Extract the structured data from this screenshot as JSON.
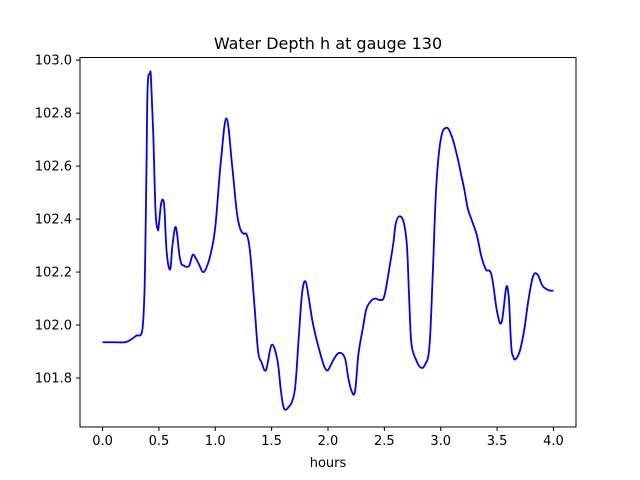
{
  "chart_data": {
    "type": "line",
    "title": "Water Depth h at gauge 130",
    "xlabel": "hours",
    "ylabel": "",
    "xlim": [
      -0.2,
      4.2
    ],
    "ylim": [
      101.615,
      103.01
    ],
    "xticks": [
      0.0,
      0.5,
      1.0,
      1.5,
      2.0,
      2.5,
      3.0,
      3.5,
      4.0
    ],
    "xtick_labels": [
      "0.0",
      "0.5",
      "1.0",
      "1.5",
      "2.0",
      "2.5",
      "3.0",
      "3.5",
      "4.0"
    ],
    "yticks": [
      101.8,
      102.0,
      102.2,
      102.4,
      102.6,
      102.8,
      103.0
    ],
    "ytick_labels": [
      "101.8",
      "102.0",
      "102.2",
      "102.4",
      "102.6",
      "102.8",
      "103.0"
    ],
    "grid": false,
    "series": [
      {
        "name": "",
        "color": "#0000ff",
        "x": [
          0.0,
          0.1,
          0.2,
          0.25,
          0.3,
          0.35,
          0.37,
          0.38,
          0.39,
          0.4,
          0.42,
          0.43,
          0.45,
          0.47,
          0.49,
          0.5,
          0.52,
          0.54,
          0.55,
          0.57,
          0.6,
          0.62,
          0.65,
          0.68,
          0.7,
          0.72,
          0.74,
          0.77,
          0.8,
          0.83,
          0.86,
          0.89,
          0.92,
          0.96,
          1.0,
          1.05,
          1.1,
          1.15,
          1.19,
          1.22,
          1.25,
          1.28,
          1.31,
          1.35,
          1.38,
          1.41,
          1.45,
          1.5,
          1.55,
          1.58,
          1.6,
          1.62,
          1.65,
          1.68,
          1.71,
          1.74,
          1.77,
          1.8,
          1.83,
          1.86,
          1.89,
          1.92,
          1.95,
          1.97,
          2.0,
          2.05,
          2.1,
          2.15,
          2.18,
          2.21,
          2.24,
          2.27,
          2.31,
          2.34,
          2.38,
          2.42,
          2.46,
          2.5,
          2.55,
          2.58,
          2.6,
          2.63,
          2.67,
          2.7,
          2.72,
          2.74,
          2.78,
          2.82,
          2.86,
          2.9,
          2.93,
          2.96,
          3.0,
          3.05,
          3.1,
          3.15,
          3.18,
          3.21,
          3.24,
          3.28,
          3.32,
          3.36,
          3.4,
          3.45,
          3.5,
          3.54,
          3.58,
          3.6,
          3.61,
          3.62,
          3.63,
          3.64,
          3.66,
          3.7,
          3.74,
          3.78,
          3.82,
          3.86,
          3.9,
          3.94,
          3.97,
          4.0
        ],
        "y": [
          101.935,
          101.935,
          101.935,
          101.945,
          101.96,
          101.975,
          102.1,
          102.3,
          102.6,
          102.9,
          102.95,
          102.93,
          102.72,
          102.43,
          102.36,
          102.38,
          102.46,
          102.47,
          102.43,
          102.27,
          102.21,
          102.3,
          102.37,
          102.27,
          102.23,
          102.225,
          102.22,
          102.225,
          102.265,
          102.25,
          102.225,
          102.2,
          102.215,
          102.27,
          102.37,
          102.62,
          102.78,
          102.6,
          102.43,
          102.365,
          102.345,
          102.34,
          102.27,
          102.06,
          101.9,
          101.86,
          101.83,
          101.925,
          101.87,
          101.76,
          101.7,
          101.68,
          101.69,
          101.71,
          101.77,
          101.95,
          102.12,
          102.165,
          102.1,
          102.02,
          101.96,
          101.91,
          101.865,
          101.84,
          101.83,
          101.87,
          101.895,
          101.875,
          101.8,
          101.75,
          101.75,
          101.89,
          101.99,
          102.06,
          102.09,
          102.1,
          102.095,
          102.11,
          102.23,
          102.31,
          102.38,
          102.41,
          102.39,
          102.3,
          102.1,
          101.93,
          101.87,
          101.84,
          101.85,
          101.92,
          102.2,
          102.52,
          102.7,
          102.745,
          102.71,
          102.63,
          102.57,
          102.51,
          102.44,
          102.39,
          102.34,
          102.26,
          102.21,
          102.19,
          102.05,
          102.01,
          102.14,
          102.12,
          102.06,
          101.96,
          101.9,
          101.885,
          101.87,
          101.9,
          101.98,
          102.1,
          102.185,
          102.19,
          102.15,
          102.135,
          102.13,
          102.13
        ]
      }
    ]
  }
}
